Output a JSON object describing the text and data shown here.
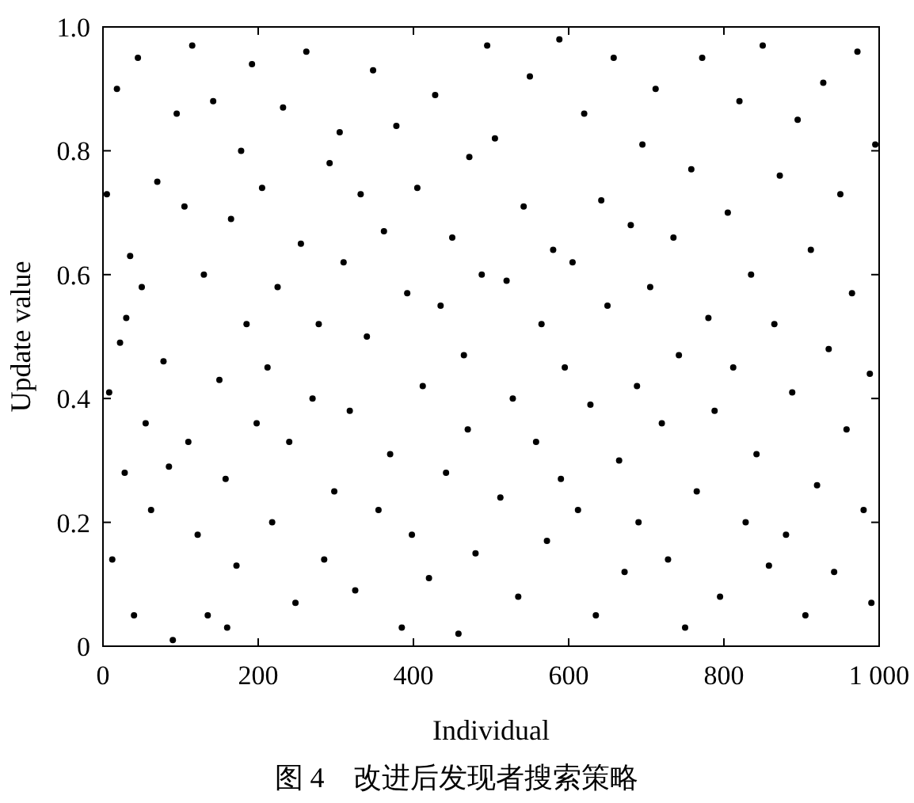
{
  "chart_data": {
    "type": "scatter",
    "title": "图 4　改进后发现者搜索策略",
    "xlabel": "Individual",
    "ylabel": "Update value",
    "color": "#000000",
    "marker": "circle",
    "xlim": [
      0,
      1000
    ],
    "ylim": [
      0,
      1
    ],
    "xticks": [
      0,
      200,
      400,
      600,
      800,
      {
        "value": 1000,
        "label": "1 000"
      }
    ],
    "yticks": [
      0,
      0.2,
      0.4,
      0.6,
      0.8,
      {
        "value": 1,
        "label": "1.0"
      }
    ],
    "x": [
      5,
      8,
      12,
      18,
      22,
      28,
      35,
      40,
      45,
      50,
      55,
      62,
      70,
      78,
      85,
      90,
      95,
      30,
      105,
      110,
      115,
      122,
      130,
      135,
      142,
      150,
      158,
      165,
      172,
      178,
      185,
      192,
      198,
      160,
      205,
      212,
      218,
      225,
      232,
      240,
      248,
      255,
      262,
      270,
      278,
      285,
      292,
      298,
      305,
      310,
      318,
      325,
      332,
      340,
      348,
      355,
      362,
      370,
      378,
      385,
      392,
      398,
      405,
      412,
      420,
      428,
      435,
      442,
      450,
      458,
      465,
      472,
      480,
      488,
      495,
      470,
      505,
      512,
      520,
      528,
      535,
      542,
      550,
      558,
      565,
      572,
      580,
      588,
      595,
      590,
      605,
      612,
      620,
      628,
      635,
      642,
      650,
      658,
      665,
      672,
      680,
      688,
      695,
      690,
      705,
      712,
      720,
      728,
      735,
      742,
      750,
      758,
      765,
      772,
      780,
      788,
      795,
      805,
      812,
      820,
      828,
      835,
      842,
      850,
      858,
      865,
      872,
      880,
      888,
      895,
      905,
      912,
      920,
      928,
      935,
      942,
      950,
      958,
      965,
      972,
      980,
      988,
      995,
      990
    ],
    "values": [
      0.73,
      0.41,
      0.14,
      0.9,
      0.49,
      0.28,
      0.63,
      0.05,
      0.95,
      0.58,
      0.36,
      0.22,
      0.75,
      0.46,
      0.29,
      0.01,
      0.86,
      0.53,
      0.71,
      0.33,
      0.97,
      0.18,
      0.6,
      0.05,
      0.88,
      0.43,
      0.27,
      0.69,
      0.13,
      0.8,
      0.52,
      0.94,
      0.36,
      0.03,
      0.74,
      0.45,
      0.2,
      0.58,
      0.87,
      0.33,
      0.07,
      0.65,
      0.96,
      0.4,
      0.52,
      0.14,
      0.78,
      0.25,
      0.83,
      0.62,
      0.38,
      0.09,
      0.73,
      0.5,
      0.93,
      0.22,
      0.67,
      0.31,
      0.84,
      0.03,
      0.57,
      0.18,
      0.74,
      0.42,
      0.11,
      0.89,
      0.55,
      0.28,
      0.66,
      0.02,
      0.47,
      0.79,
      0.15,
      0.6,
      0.97,
      0.35,
      0.82,
      0.24,
      0.59,
      0.4,
      0.08,
      0.71,
      0.92,
      0.33,
      0.52,
      0.17,
      0.64,
      0.98,
      0.45,
      0.27,
      0.62,
      0.22,
      0.86,
      0.39,
      0.05,
      0.72,
      0.55,
      0.95,
      0.3,
      0.12,
      0.68,
      0.42,
      0.81,
      0.2,
      0.58,
      0.9,
      0.36,
      0.14,
      0.66,
      0.47,
      0.03,
      0.77,
      0.25,
      0.95,
      0.53,
      0.38,
      0.08,
      0.7,
      0.45,
      0.88,
      0.2,
      0.6,
      0.31,
      0.97,
      0.13,
      0.52,
      0.76,
      0.18,
      0.41,
      0.85,
      0.05,
      0.64,
      0.26,
      0.91,
      0.48,
      0.12,
      0.73,
      0.35,
      0.57,
      0.96,
      0.22,
      0.44,
      0.81,
      0.07
    ]
  }
}
